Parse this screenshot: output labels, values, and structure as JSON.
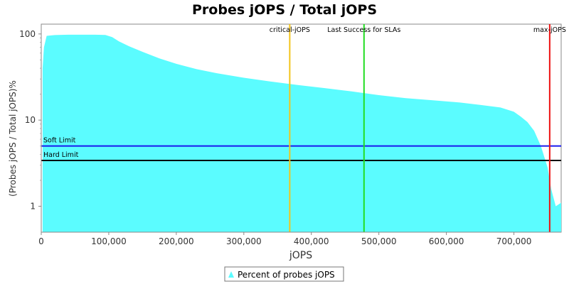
{
  "chart_data": {
    "type": "area",
    "title": "Probes jOPS / Total jOPS",
    "xlabel": "jOPS",
    "ylabel": "(Probes jOPS / Total jOPS)%",
    "xlim": [
      0,
      770000
    ],
    "ylim": [
      0.5,
      130
    ],
    "yscale": "log",
    "x_ticks": [
      0,
      100000,
      200000,
      300000,
      400000,
      500000,
      600000,
      700000
    ],
    "x_tick_labels": [
      "0",
      "100,000",
      "200,000",
      "300,000",
      "400,000",
      "500,000",
      "600,000",
      "700,000"
    ],
    "y_ticks": [
      1,
      10,
      100
    ],
    "y_tick_labels": [
      "1",
      "10",
      "100"
    ],
    "grid": false,
    "legend_position": "bottom",
    "series": [
      {
        "name": "Percent of probes jOPS",
        "color": "#5bfcff",
        "x": [
          2000,
          4000,
          8000,
          20000,
          40000,
          60000,
          80000,
          95000,
          105000,
          115000,
          130000,
          150000,
          175000,
          200000,
          230000,
          260000,
          300000,
          340000,
          380000,
          420000,
          460000,
          500000,
          540000,
          580000,
          620000,
          650000,
          680000,
          700000,
          710000,
          720000,
          730000,
          740000,
          750000,
          755000,
          762000,
          770000
        ],
        "y": [
          40,
          70,
          95,
          97,
          98,
          98,
          98,
          97.5,
          92,
          82,
          72,
          62,
          52,
          45,
          39,
          35,
          31,
          28,
          25.5,
          23.5,
          21.5,
          19.5,
          18,
          17,
          16,
          15,
          14,
          12.5,
          11,
          9.5,
          7.5,
          5,
          2.8,
          1.6,
          1.0,
          1.1
        ]
      }
    ],
    "markers": [
      {
        "label": "critical-jOPS",
        "x": 368000,
        "color": "#f3c41a"
      },
      {
        "label": "Last Success for SLAs",
        "x": 478000,
        "color": "#22dd22"
      },
      {
        "label": "max-jOPS",
        "x": 753000,
        "color": "#ee1111"
      }
    ],
    "thresholds": [
      {
        "label": "Soft Limit",
        "y": 5,
        "color": "#1a1aee"
      },
      {
        "label": "Hard Limit",
        "y": 3.4,
        "color": "#000000"
      }
    ]
  }
}
